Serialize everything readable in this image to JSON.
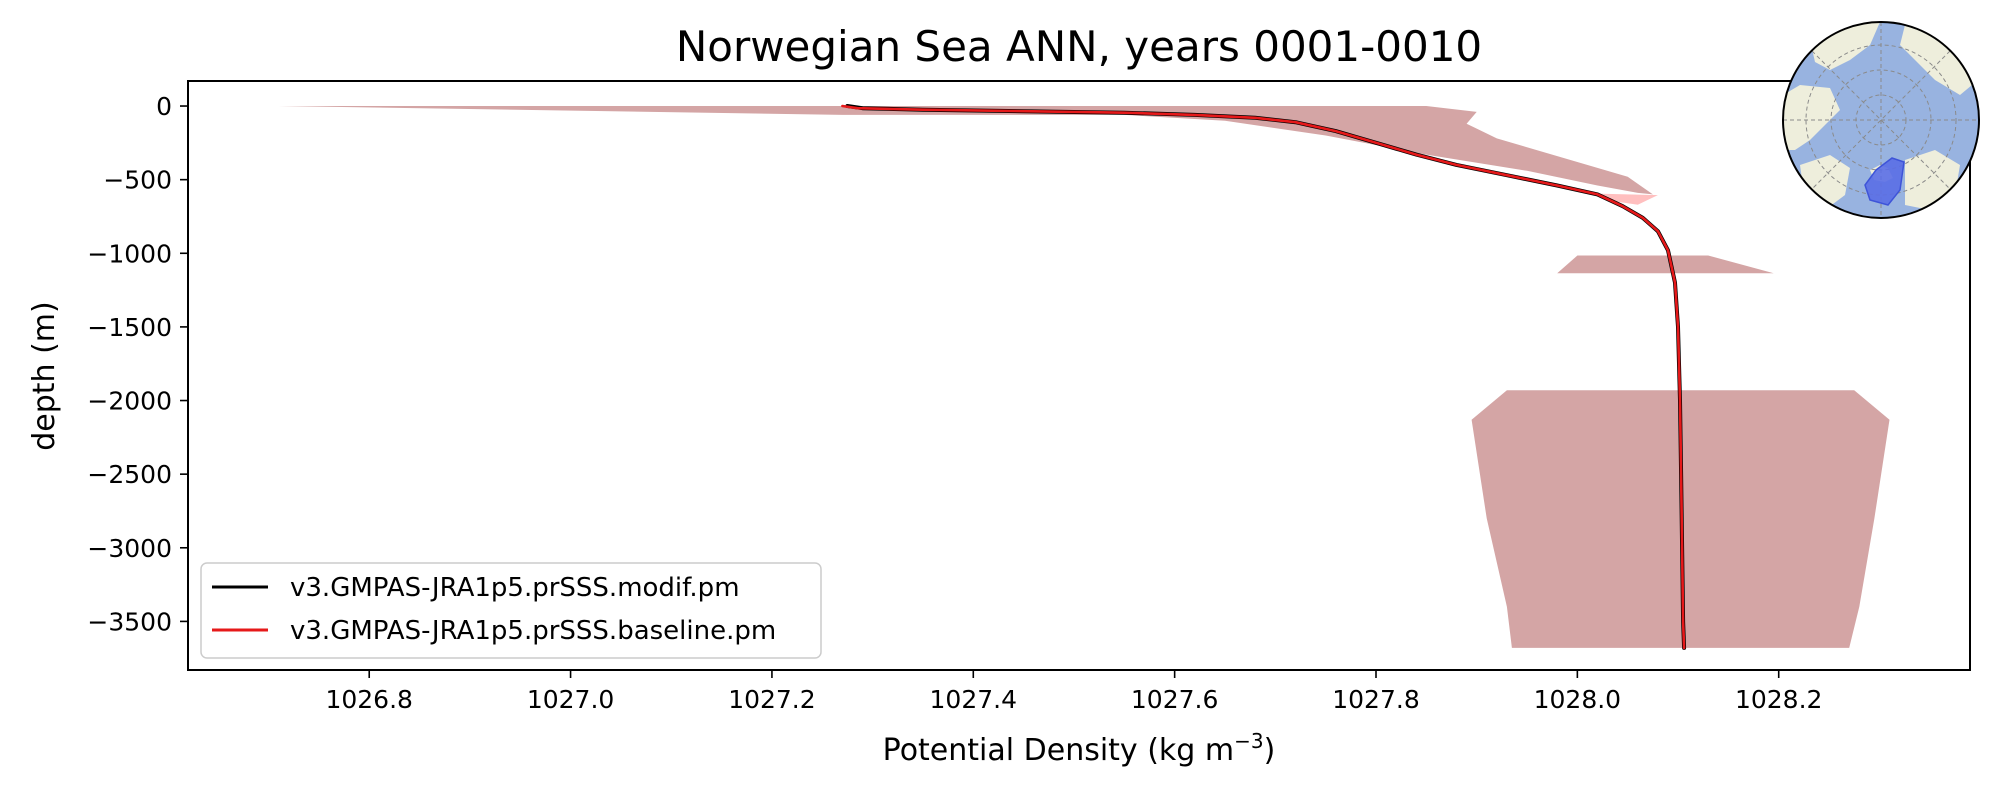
{
  "chart_data": {
    "type": "line",
    "title": "Norwegian Sea ANN, years 0001-0010",
    "xlabel_base": "Potential Density (kg m",
    "xlabel_exp": "−3",
    "xlabel_close": ")",
    "ylabel": "depth (m)",
    "xlim": [
      1026.62,
      1028.39
    ],
    "ylim": [
      -3830,
      170
    ],
    "xticks": [
      1026.8,
      1027.0,
      1027.2,
      1027.4,
      1027.6,
      1027.8,
      1028.0,
      1028.2
    ],
    "xtick_labels": [
      "1026.8",
      "1027.0",
      "1027.2",
      "1027.4",
      "1027.6",
      "1027.8",
      "1028.0",
      "1028.2"
    ],
    "yticks": [
      0,
      -500,
      -1000,
      -1500,
      -2000,
      -2500,
      -3000,
      -3500
    ],
    "ytick_labels": [
      "0",
      "−500",
      "−1000",
      "−1500",
      "−2000",
      "−2500",
      "−3000",
      "−3500"
    ],
    "legend_position": "lower-left",
    "series": [
      {
        "name": "v3.GMPAS-JRA1p5.prSSS.modif.pm",
        "color": "#000000",
        "x": [
          1027.275,
          1027.29,
          1027.35,
          1027.45,
          1027.55,
          1027.62,
          1027.68,
          1027.72,
          1027.76,
          1027.8,
          1027.84,
          1027.88,
          1027.93,
          1027.98,
          1028.02,
          1028.045,
          1028.065,
          1028.08,
          1028.09,
          1028.097,
          1028.1,
          1028.102,
          1028.103,
          1028.104,
          1028.105,
          1028.106
        ],
        "y": [
          0,
          -15,
          -25,
          -35,
          -45,
          -60,
          -80,
          -110,
          -170,
          -250,
          -330,
          -400,
          -470,
          -540,
          -600,
          -680,
          -760,
          -850,
          -980,
          -1200,
          -1500,
          -2000,
          -2500,
          -3000,
          -3500,
          -3680
        ]
      },
      {
        "name": "v3.GMPAS-JRA1p5.prSSS.baseline.pm",
        "color": "#e6191a",
        "x": [
          1027.27,
          1027.285,
          1027.35,
          1027.45,
          1027.55,
          1027.62,
          1027.68,
          1027.72,
          1027.76,
          1027.8,
          1027.84,
          1027.88,
          1027.93,
          1027.98,
          1028.02,
          1028.045,
          1028.065,
          1028.08,
          1028.09,
          1028.097,
          1028.1,
          1028.102,
          1028.103,
          1028.104,
          1028.105,
          1028.106
        ],
        "y": [
          0,
          -15,
          -25,
          -35,
          -45,
          -60,
          -80,
          -110,
          -170,
          -250,
          -330,
          -400,
          -470,
          -540,
          -600,
          -680,
          -760,
          -850,
          -980,
          -1200,
          -1500,
          -2000,
          -2500,
          -3000,
          -3500,
          -3680
        ]
      }
    ],
    "shaded_ranges": [
      {
        "color": "#d4a5a5",
        "upper": {
          "x": [
            1026.71,
            1027.85,
            1027.9,
            1027.89,
            1027.92,
            1028.05,
            1028.075
          ],
          "y": [
            0,
            0,
            -40,
            -120,
            -220,
            -480,
            -600
          ]
        },
        "lower": {
          "x": [
            1027.27,
            1027.55,
            1027.65,
            1027.75,
            1027.85,
            1027.95,
            1028.02,
            1028.06,
            1028.075
          ],
          "y": [
            -60,
            -60,
            -100,
            -200,
            -330,
            -440,
            -540,
            -590,
            -600
          ]
        }
      },
      {
        "color": "#ffbfbf",
        "upper": {
          "x": [
            1028.02,
            1028.08
          ],
          "y": [
            -595,
            -605
          ]
        },
        "lower": {
          "x": [
            1028.04,
            1028.06
          ],
          "y": [
            -650,
            -670
          ]
        }
      },
      {
        "color": "#d4a5a5",
        "upper": {
          "x": [
            1028.0,
            1028.13
          ],
          "y": [
            -1015,
            -1015
          ]
        },
        "lower": {
          "x": [
            1027.98,
            1028.195
          ],
          "y": [
            -1135,
            -1135
          ]
        }
      },
      {
        "color": "#d4a5a5",
        "upper": {
          "x": [
            1027.93,
            1028.275,
            1028.31
          ],
          "y": [
            -1930,
            -1930,
            -2130
          ]
        },
        "lower": {
          "x": [
            1027.895,
            1027.91,
            1027.93,
            1027.935
          ],
          "y": [
            -2130,
            -2800,
            -3400,
            -3680
          ]
        },
        "right": {
          "x": [
            1028.31,
            1028.295,
            1028.28,
            1028.27
          ],
          "y": [
            -2130,
            -2800,
            -3400,
            -3680
          ]
        }
      }
    ]
  },
  "colors": {
    "map_ocean": "#98b3e0",
    "map_land": "#eeeedc",
    "map_region": "#5a6ee6"
  }
}
